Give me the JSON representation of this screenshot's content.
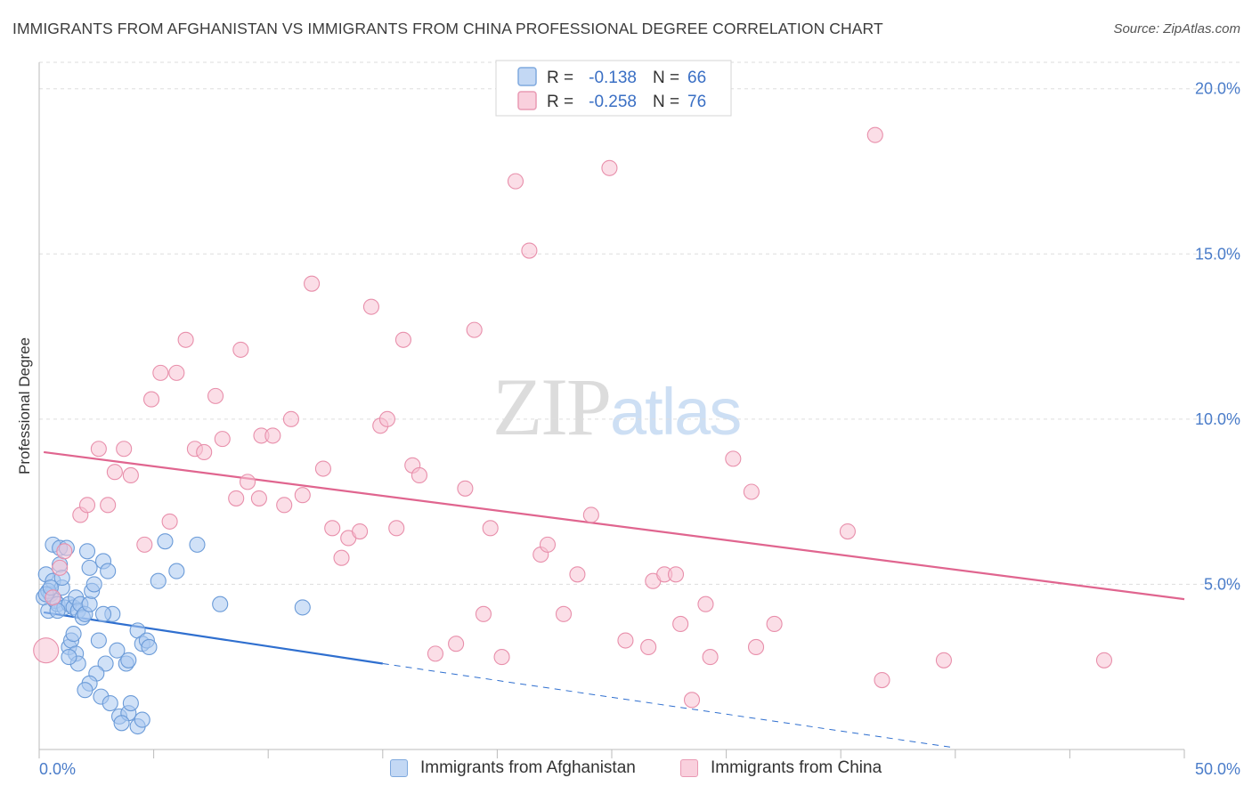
{
  "header": {
    "title": "IMMIGRANTS FROM AFGHANISTAN VS IMMIGRANTS FROM CHINA PROFESSIONAL DEGREE CORRELATION CHART",
    "source": "Source: ZipAtlas.com"
  },
  "watermark": {
    "zip": "ZIP",
    "atlas": "atlas"
  },
  "colors": {
    "blue_fill": "#a9c8f0",
    "blue_stroke": "#6b9bd8",
    "blue_line": "#2f6fcf",
    "pink_fill": "#f7c3d3",
    "pink_stroke": "#e88fab",
    "pink_line": "#e0658f",
    "tick_color": "#4a7cc9",
    "grid": "#dddddd"
  },
  "legend": {
    "r_label": "R =",
    "n_label": "N =",
    "rows": [
      {
        "r": "-0.138",
        "n": "66"
      },
      {
        "r": "-0.258",
        "n": "76"
      }
    ]
  },
  "chart_data": {
    "type": "scatter",
    "xlabel": "",
    "ylabel": "Professional Degree",
    "xlim": [
      0,
      50
    ],
    "ylim": [
      0,
      20.8
    ],
    "x_tick_labels": [
      "0.0%",
      "50.0%"
    ],
    "y_ticks": [
      5,
      10,
      15,
      20
    ],
    "y_tick_labels": [
      "5.0%",
      "10.0%",
      "15.0%",
      "20.0%"
    ],
    "grid": true,
    "legend_position": "top-center",
    "series": [
      {
        "name": "Immigrants from Afghanistan",
        "color": "#a9c8f0",
        "r": -0.138,
        "n": 66,
        "trend": {
          "x": [
            0.2,
            15.0
          ],
          "y": [
            4.15,
            2.6
          ],
          "dashed_to": [
            40.0,
            0.05
          ]
        },
        "points": [
          [
            0.2,
            4.6
          ],
          [
            0.3,
            5.3
          ],
          [
            0.4,
            4.2
          ],
          [
            0.5,
            4.7
          ],
          [
            0.6,
            5.1
          ],
          [
            0.7,
            4.5
          ],
          [
            0.8,
            4.4
          ],
          [
            0.9,
            5.6
          ],
          [
            1.0,
            4.9
          ],
          [
            1.1,
            4.3
          ],
          [
            0.4,
            4.8
          ],
          [
            0.6,
            6.2
          ],
          [
            0.9,
            6.1
          ],
          [
            1.2,
            6.1
          ],
          [
            1.3,
            4.4
          ],
          [
            1.5,
            4.3
          ],
          [
            1.6,
            4.6
          ],
          [
            1.7,
            4.2
          ],
          [
            1.8,
            4.4
          ],
          [
            1.9,
            4.0
          ],
          [
            2.0,
            4.1
          ],
          [
            2.2,
            4.4
          ],
          [
            2.3,
            4.8
          ],
          [
            2.1,
            6.0
          ],
          [
            2.2,
            5.5
          ],
          [
            2.4,
            5.0
          ],
          [
            2.8,
            5.7
          ],
          [
            3.0,
            5.4
          ],
          [
            3.2,
            4.1
          ],
          [
            2.8,
            4.1
          ],
          [
            1.3,
            3.1
          ],
          [
            1.4,
            3.3
          ],
          [
            1.5,
            3.5
          ],
          [
            1.6,
            2.9
          ],
          [
            1.7,
            2.6
          ],
          [
            1.3,
            2.8
          ],
          [
            2.6,
            3.3
          ],
          [
            2.9,
            2.6
          ],
          [
            3.4,
            3.0
          ],
          [
            3.8,
            2.6
          ],
          [
            3.9,
            2.7
          ],
          [
            4.3,
            3.6
          ],
          [
            4.5,
            3.2
          ],
          [
            4.7,
            3.3
          ],
          [
            4.8,
            3.1
          ],
          [
            2.5,
            2.3
          ],
          [
            2.2,
            2.0
          ],
          [
            2.0,
            1.8
          ],
          [
            2.7,
            1.6
          ],
          [
            3.1,
            1.4
          ],
          [
            3.5,
            1.0
          ],
          [
            3.9,
            1.1
          ],
          [
            4.0,
            1.4
          ],
          [
            3.6,
            0.8
          ],
          [
            4.3,
            0.7
          ],
          [
            4.5,
            0.9
          ],
          [
            5.2,
            5.1
          ],
          [
            5.5,
            6.3
          ],
          [
            6.0,
            5.4
          ],
          [
            6.9,
            6.2
          ],
          [
            7.9,
            4.4
          ],
          [
            11.5,
            4.3
          ],
          [
            0.3,
            4.7
          ],
          [
            0.5,
            4.9
          ],
          [
            0.8,
            4.2
          ],
          [
            1.0,
            5.2
          ]
        ]
      },
      {
        "name": "Immigrants from China",
        "color": "#f7c3d3",
        "r": -0.258,
        "n": 76,
        "trend": {
          "x": [
            0.2,
            50.0
          ],
          "y": [
            9.0,
            4.55
          ]
        },
        "points": [
          [
            0.3,
            3.0
          ],
          [
            0.6,
            4.6
          ],
          [
            0.9,
            5.5
          ],
          [
            1.1,
            6.0
          ],
          [
            1.8,
            7.1
          ],
          [
            2.1,
            7.4
          ],
          [
            2.6,
            9.1
          ],
          [
            3.0,
            7.4
          ],
          [
            3.3,
            8.4
          ],
          [
            3.7,
            9.1
          ],
          [
            4.0,
            8.3
          ],
          [
            4.6,
            6.2
          ],
          [
            4.9,
            10.6
          ],
          [
            5.3,
            11.4
          ],
          [
            5.7,
            6.9
          ],
          [
            6.0,
            11.4
          ],
          [
            6.4,
            12.4
          ],
          [
            6.8,
            9.1
          ],
          [
            7.2,
            9.0
          ],
          [
            7.7,
            10.7
          ],
          [
            8.0,
            9.4
          ],
          [
            8.6,
            7.6
          ],
          [
            8.8,
            12.1
          ],
          [
            9.1,
            8.1
          ],
          [
            9.6,
            7.6
          ],
          [
            9.7,
            9.5
          ],
          [
            10.2,
            9.5
          ],
          [
            10.7,
            7.4
          ],
          [
            11.0,
            10.0
          ],
          [
            11.5,
            7.7
          ],
          [
            11.9,
            14.1
          ],
          [
            12.4,
            8.5
          ],
          [
            12.8,
            6.7
          ],
          [
            13.2,
            5.8
          ],
          [
            13.5,
            6.4
          ],
          [
            14.0,
            6.6
          ],
          [
            14.5,
            13.4
          ],
          [
            14.9,
            9.8
          ],
          [
            15.2,
            10.0
          ],
          [
            15.6,
            6.7
          ],
          [
            15.9,
            12.4
          ],
          [
            16.3,
            8.6
          ],
          [
            16.6,
            8.3
          ],
          [
            17.3,
            2.9
          ],
          [
            18.2,
            3.2
          ],
          [
            18.6,
            7.9
          ],
          [
            19.0,
            12.7
          ],
          [
            19.4,
            4.1
          ],
          [
            19.7,
            6.7
          ],
          [
            20.2,
            2.8
          ],
          [
            20.8,
            17.2
          ],
          [
            21.4,
            15.1
          ],
          [
            21.9,
            5.9
          ],
          [
            22.2,
            6.2
          ],
          [
            22.9,
            4.1
          ],
          [
            23.5,
            5.3
          ],
          [
            24.1,
            7.1
          ],
          [
            24.9,
            17.6
          ],
          [
            25.6,
            3.3
          ],
          [
            26.6,
            3.1
          ],
          [
            26.8,
            5.1
          ],
          [
            27.3,
            5.3
          ],
          [
            27.8,
            5.3
          ],
          [
            28.0,
            3.8
          ],
          [
            28.5,
            1.5
          ],
          [
            29.1,
            4.4
          ],
          [
            29.3,
            2.8
          ],
          [
            30.3,
            8.8
          ],
          [
            31.1,
            7.8
          ],
          [
            31.3,
            3.1
          ],
          [
            32.1,
            3.8
          ],
          [
            35.3,
            6.6
          ],
          [
            36.5,
            18.6
          ],
          [
            36.8,
            2.1
          ],
          [
            39.5,
            2.7
          ],
          [
            46.5,
            2.7
          ]
        ]
      }
    ]
  }
}
